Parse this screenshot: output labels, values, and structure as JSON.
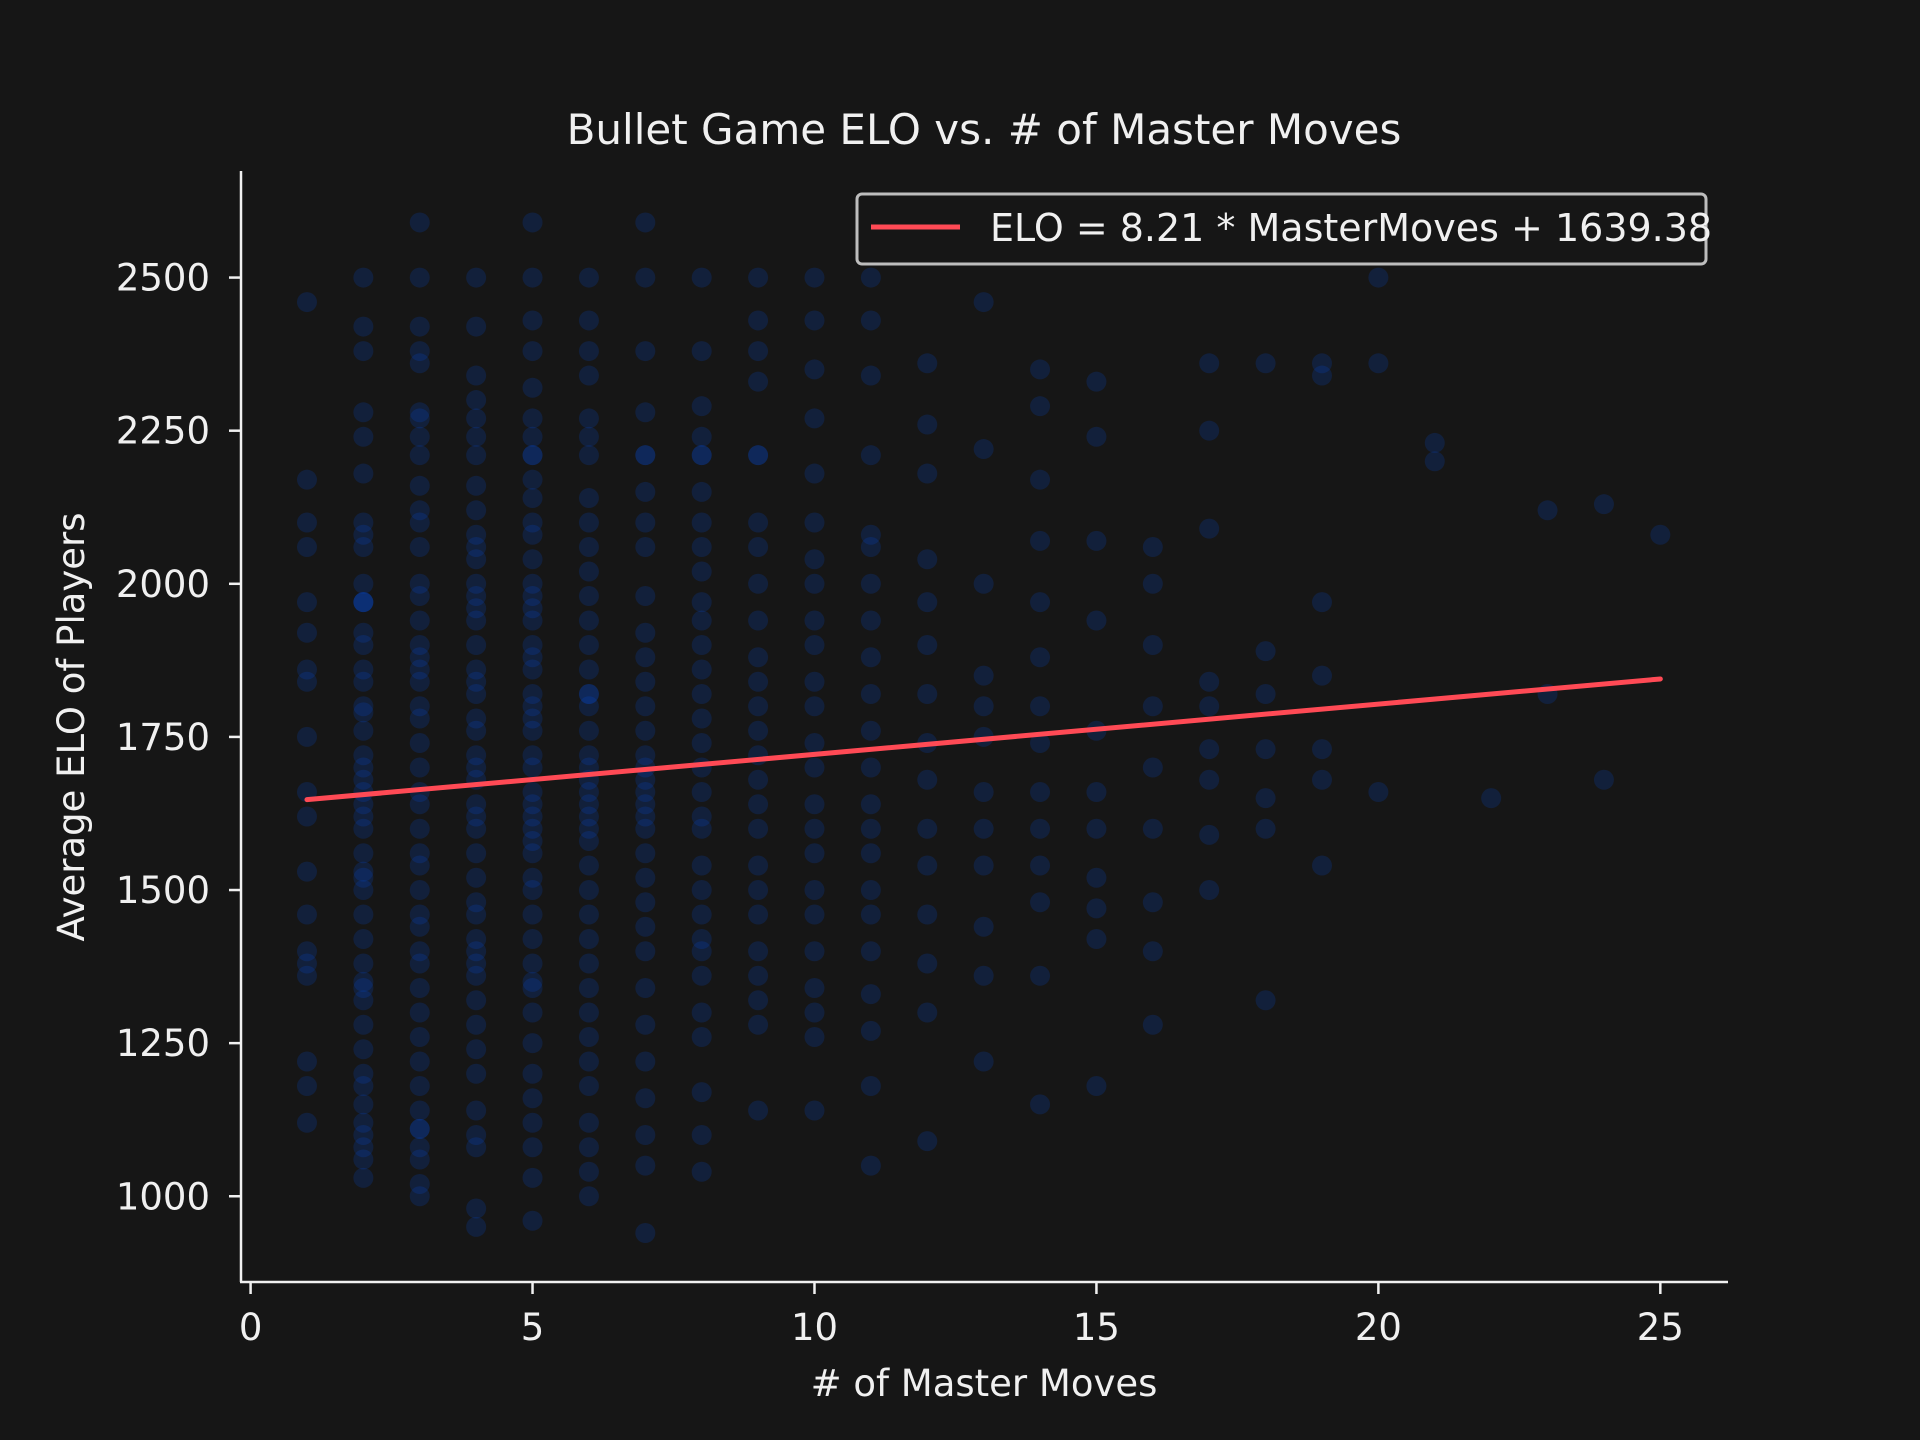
{
  "chart_data": {
    "type": "scatter",
    "title": "Bullet Game ELO vs. # of Master Moves",
    "xlabel": "# of Master Moves",
    "ylabel": "Average ELO of Players",
    "xlim": [
      -0.17,
      26.2
    ],
    "ylim": [
      860,
      2674
    ],
    "xticks": [
      0,
      5,
      10,
      15,
      20,
      25
    ],
    "yticks": [
      1000,
      1250,
      1500,
      1750,
      2000,
      2250,
      2500
    ],
    "grid": false,
    "legend": {
      "placement": "top-right",
      "entries": [
        "ELO = 8.21 * MasterMoves + 1639.38"
      ]
    },
    "colors": {
      "points": "#0055ff",
      "fit_line": "#ff4a55",
      "background": "#161616",
      "axis": "#f0f0f0"
    },
    "fit": {
      "slope": 8.21,
      "intercept": 1639.38,
      "x_range": [
        1,
        25
      ]
    },
    "series": [
      {
        "name": "games",
        "columns": [
          {
            "x": 1,
            "y": [
              1120,
              1180,
              1220,
              1360,
              1380,
              1400,
              1460,
              1530,
              1620,
              1660,
              1750,
              1840,
              1860,
              1920,
              1970,
              2060,
              2100,
              2170,
              2460
            ]
          },
          {
            "x": 2,
            "y": [
              1030,
              1060,
              1080,
              1100,
              1120,
              1150,
              1180,
              1200,
              1240,
              1280,
              1320,
              1340,
              1350,
              1380,
              1420,
              1460,
              1500,
              1520,
              1530,
              1560,
              1600,
              1620,
              1640,
              1660,
              1680,
              1700,
              1720,
              1760,
              1790,
              1800,
              1840,
              1860,
              1900,
              1920,
              1970,
              1970,
              1970,
              2000,
              2060,
              2080,
              2100,
              2180,
              2240,
              2280,
              2380,
              2420,
              2500
            ]
          },
          {
            "x": 3,
            "y": [
              1000,
              1020,
              1060,
              1080,
              1110,
              1110,
              1140,
              1180,
              1220,
              1260,
              1300,
              1340,
              1380,
              1400,
              1440,
              1460,
              1500,
              1540,
              1560,
              1600,
              1640,
              1660,
              1700,
              1740,
              1780,
              1800,
              1840,
              1860,
              1880,
              1900,
              1940,
              1980,
              2000,
              2060,
              2100,
              2120,
              2160,
              2210,
              2240,
              2270,
              2280,
              2360,
              2380,
              2420,
              2500,
              2590
            ]
          },
          {
            "x": 4,
            "y": [
              950,
              980,
              1080,
              1100,
              1140,
              1200,
              1240,
              1280,
              1320,
              1360,
              1380,
              1400,
              1420,
              1460,
              1480,
              1520,
              1560,
              1600,
              1620,
              1640,
              1680,
              1700,
              1720,
              1760,
              1780,
              1820,
              1840,
              1860,
              1900,
              1940,
              1960,
              1980,
              2000,
              2040,
              2060,
              2080,
              2120,
              2160,
              2210,
              2240,
              2270,
              2300,
              2340,
              2420,
              2500
            ]
          },
          {
            "x": 5,
            "y": [
              960,
              1030,
              1080,
              1120,
              1160,
              1200,
              1250,
              1300,
              1340,
              1350,
              1380,
              1420,
              1460,
              1500,
              1520,
              1560,
              1580,
              1600,
              1620,
              1640,
              1660,
              1700,
              1720,
              1760,
              1780,
              1800,
              1820,
              1860,
              1880,
              1900,
              1940,
              1960,
              1980,
              2000,
              2040,
              2080,
              2100,
              2140,
              2170,
              2210,
              2210,
              2240,
              2270,
              2320,
              2380,
              2430,
              2500,
              2590
            ]
          },
          {
            "x": 6,
            "y": [
              1000,
              1040,
              1080,
              1120,
              1180,
              1220,
              1260,
              1300,
              1340,
              1380,
              1420,
              1460,
              1500,
              1540,
              1580,
              1600,
              1620,
              1640,
              1660,
              1680,
              1700,
              1720,
              1760,
              1800,
              1820,
              1820,
              1860,
              1900,
              1940,
              1980,
              2020,
              2060,
              2100,
              2140,
              2210,
              2240,
              2270,
              2340,
              2380,
              2430,
              2500
            ]
          },
          {
            "x": 7,
            "y": [
              940,
              1050,
              1100,
              1160,
              1220,
              1280,
              1340,
              1400,
              1440,
              1480,
              1520,
              1560,
              1600,
              1620,
              1640,
              1660,
              1680,
              1700,
              1720,
              1760,
              1800,
              1840,
              1880,
              1920,
              1980,
              2060,
              2100,
              2150,
              2210,
              2210,
              2280,
              2380,
              2500,
              2590
            ]
          },
          {
            "x": 8,
            "y": [
              1040,
              1100,
              1170,
              1260,
              1300,
              1360,
              1400,
              1420,
              1460,
              1500,
              1540,
              1600,
              1620,
              1660,
              1700,
              1740,
              1780,
              1820,
              1860,
              1900,
              1940,
              1970,
              2020,
              2060,
              2100,
              2150,
              2210,
              2210,
              2240,
              2290,
              2380,
              2500
            ]
          },
          {
            "x": 9,
            "y": [
              1140,
              1280,
              1320,
              1360,
              1400,
              1460,
              1500,
              1540,
              1600,
              1640,
              1680,
              1720,
              1760,
              1800,
              1840,
              1880,
              1940,
              2000,
              2060,
              2100,
              2210,
              2210,
              2330,
              2380,
              2430,
              2500
            ]
          },
          {
            "x": 10,
            "y": [
              1140,
              1260,
              1300,
              1340,
              1400,
              1460,
              1500,
              1560,
              1600,
              1640,
              1700,
              1740,
              1800,
              1840,
              1900,
              1940,
              2000,
              2040,
              2100,
              2180,
              2270,
              2350,
              2430,
              2500
            ]
          },
          {
            "x": 11,
            "y": [
              1050,
              1180,
              1270,
              1330,
              1400,
              1460,
              1500,
              1560,
              1600,
              1640,
              1700,
              1760,
              1820,
              1880,
              1940,
              2000,
              2060,
              2080,
              2210,
              2340,
              2430,
              2500
            ]
          },
          {
            "x": 12,
            "y": [
              1090,
              1300,
              1380,
              1460,
              1540,
              1600,
              1680,
              1740,
              1820,
              1900,
              1970,
              2040,
              2180,
              2260,
              2360
            ]
          },
          {
            "x": 13,
            "y": [
              1220,
              1360,
              1440,
              1540,
              1600,
              1660,
              1750,
              1800,
              1850,
              2000,
              2220,
              2460
            ]
          },
          {
            "x": 14,
            "y": [
              1150,
              1360,
              1480,
              1540,
              1600,
              1660,
              1740,
              1800,
              1880,
              1970,
              2070,
              2170,
              2290,
              2350
            ]
          },
          {
            "x": 15,
            "y": [
              1180,
              1420,
              1470,
              1520,
              1600,
              1660,
              1760,
              1940,
              2070,
              2240,
              2330
            ]
          },
          {
            "x": 16,
            "y": [
              1280,
              1400,
              1480,
              1600,
              1700,
              1800,
              1900,
              2000,
              2060
            ]
          },
          {
            "x": 17,
            "y": [
              1500,
              1590,
              1680,
              1730,
              1800,
              1840,
              2090,
              2250,
              2360
            ]
          },
          {
            "x": 18,
            "y": [
              1320,
              1600,
              1650,
              1730,
              1820,
              1890,
              2360
            ]
          },
          {
            "x": 19,
            "y": [
              1540,
              1680,
              1730,
              1850,
              1970,
              2340,
              2360
            ]
          },
          {
            "x": 20,
            "y": [
              1660,
              2360,
              2500
            ]
          },
          {
            "x": 21,
            "y": [
              2200,
              2230
            ]
          },
          {
            "x": 22,
            "y": [
              1650
            ]
          },
          {
            "x": 23,
            "y": [
              1820,
              2120
            ]
          },
          {
            "x": 24,
            "y": [
              1680,
              2130
            ]
          },
          {
            "x": 25,
            "y": [
              2080
            ]
          }
        ]
      }
    ]
  }
}
